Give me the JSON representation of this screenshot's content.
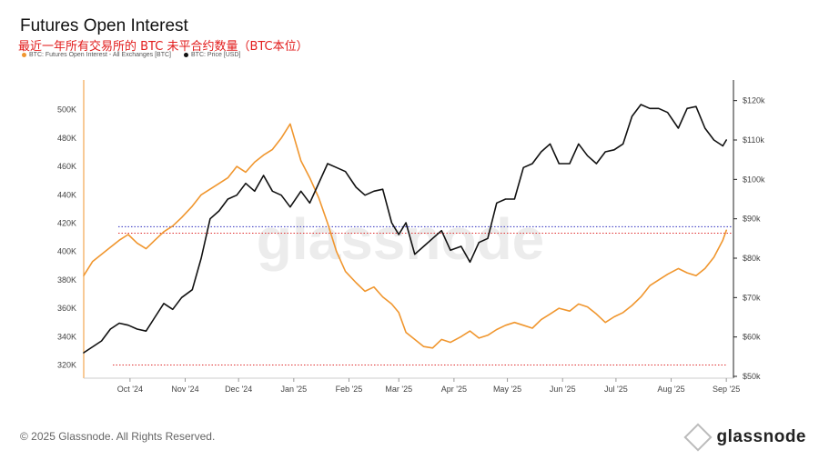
{
  "header": {
    "title": "Futures Open Interest",
    "subtitle": "最近一年所有交易所的 BTC 未平合约数量（BTC本位）"
  },
  "legend": [
    {
      "label": "BTC: Futures Open Interest - All Exchanges [BTC]",
      "color": "#f0962e"
    },
    {
      "label": "BTC: Price [USD]",
      "color": "#111111"
    }
  ],
  "footer": {
    "copyright": "© 2025 Glassnode. All Rights Reserved.",
    "brand": "glassnode",
    "watermark": "glassnode"
  },
  "chart_data": {
    "type": "line",
    "x_ticks": [
      "Oct '24",
      "Nov '24",
      "Dec '24",
      "Jan '25",
      "Feb '25",
      "Mar '25",
      "Apr '25",
      "May '25",
      "Jun '25",
      "Jul '25",
      "Aug '25",
      "Sep '25"
    ],
    "y_left": {
      "ticks": [
        "320K",
        "340K",
        "360K",
        "380K",
        "400K",
        "420K",
        "440K",
        "460K",
        "480K",
        "500K"
      ],
      "range": [
        312000,
        512000
      ]
    },
    "y_right": {
      "ticks": [
        "$50k",
        "$60k",
        "$70k",
        "$80k",
        "$90k",
        "$100k",
        "$110k",
        "$120k"
      ],
      "range": [
        50000,
        122000
      ],
      "scale": "linear"
    },
    "reference_lines": [
      {
        "value": 413000,
        "axis": "left",
        "color": "#e03030",
        "style": "dotted"
      },
      {
        "value": 320000,
        "axis": "left",
        "color": "#e03030",
        "style": "dotted"
      },
      {
        "value": 88000,
        "axis": "right",
        "color": "#3030c0",
        "style": "dotted"
      }
    ],
    "series": [
      {
        "name": "BTC: Futures Open Interest - All Exchanges [BTC]",
        "axis": "left",
        "color": "#f0962e",
        "x": [
          "2024-09-05",
          "2024-09-10",
          "2024-09-15",
          "2024-09-20",
          "2024-09-25",
          "2024-09-30",
          "2024-10-05",
          "2024-10-10",
          "2024-10-15",
          "2024-10-20",
          "2024-10-25",
          "2024-10-30",
          "2024-11-05",
          "2024-11-10",
          "2024-11-15",
          "2024-11-20",
          "2024-11-25",
          "2024-11-30",
          "2024-12-05",
          "2024-12-10",
          "2024-12-15",
          "2024-12-20",
          "2024-12-25",
          "2024-12-30",
          "2025-01-05",
          "2025-01-10",
          "2025-01-15",
          "2025-01-20",
          "2025-01-25",
          "2025-01-30",
          "2025-02-05",
          "2025-02-10",
          "2025-02-15",
          "2025-02-20",
          "2025-02-25",
          "2025-03-01",
          "2025-03-05",
          "2025-03-10",
          "2025-03-15",
          "2025-03-20",
          "2025-03-25",
          "2025-03-30",
          "2025-04-05",
          "2025-04-10",
          "2025-04-15",
          "2025-04-20",
          "2025-04-25",
          "2025-04-30",
          "2025-05-05",
          "2025-05-10",
          "2025-05-15",
          "2025-05-20",
          "2025-05-25",
          "2025-05-30",
          "2025-06-05",
          "2025-06-10",
          "2025-06-15",
          "2025-06-20",
          "2025-06-25",
          "2025-06-30",
          "2025-07-05",
          "2025-07-10",
          "2025-07-15",
          "2025-07-20",
          "2025-07-25",
          "2025-07-30",
          "2025-08-05",
          "2025-08-10",
          "2025-08-15",
          "2025-08-20",
          "2025-08-25",
          "2025-08-30",
          "2025-09-01"
        ],
        "values": [
          383000,
          393000,
          398000,
          403000,
          408000,
          412000,
          406000,
          402000,
          408000,
          414000,
          418000,
          424000,
          432000,
          440000,
          444000,
          448000,
          452000,
          460000,
          456000,
          463000,
          468000,
          472000,
          480000,
          490000,
          464000,
          452000,
          438000,
          420000,
          400000,
          386000,
          378000,
          372000,
          375000,
          368000,
          363000,
          357000,
          343000,
          338000,
          333000,
          332000,
          338000,
          336000,
          340000,
          344000,
          339000,
          341000,
          345000,
          348000,
          350000,
          348000,
          346000,
          352000,
          356000,
          360000,
          358000,
          363000,
          361000,
          356000,
          350000,
          354000,
          357000,
          362000,
          368000,
          376000,
          380000,
          384000,
          388000,
          385000,
          383000,
          388000,
          396000,
          408000,
          415000
        ]
      },
      {
        "name": "BTC: Price [USD]",
        "axis": "right",
        "color": "#111111",
        "x": [
          "2024-09-05",
          "2024-09-10",
          "2024-09-15",
          "2024-09-20",
          "2024-09-25",
          "2024-09-30",
          "2024-10-05",
          "2024-10-10",
          "2024-10-15",
          "2024-10-20",
          "2024-10-25",
          "2024-10-30",
          "2024-11-05",
          "2024-11-10",
          "2024-11-15",
          "2024-11-20",
          "2024-11-25",
          "2024-11-30",
          "2024-12-05",
          "2024-12-10",
          "2024-12-15",
          "2024-12-20",
          "2024-12-25",
          "2024-12-30",
          "2025-01-05",
          "2025-01-10",
          "2025-01-15",
          "2025-01-20",
          "2025-01-25",
          "2025-01-30",
          "2025-02-05",
          "2025-02-10",
          "2025-02-15",
          "2025-02-20",
          "2025-02-25",
          "2025-03-01",
          "2025-03-05",
          "2025-03-10",
          "2025-03-15",
          "2025-03-20",
          "2025-03-25",
          "2025-03-30",
          "2025-04-05",
          "2025-04-10",
          "2025-04-15",
          "2025-04-20",
          "2025-04-25",
          "2025-04-30",
          "2025-05-05",
          "2025-05-10",
          "2025-05-15",
          "2025-05-20",
          "2025-05-25",
          "2025-05-30",
          "2025-06-05",
          "2025-06-10",
          "2025-06-15",
          "2025-06-20",
          "2025-06-25",
          "2025-06-30",
          "2025-07-05",
          "2025-07-10",
          "2025-07-15",
          "2025-07-20",
          "2025-07-25",
          "2025-07-30",
          "2025-08-05",
          "2025-08-10",
          "2025-08-15",
          "2025-08-20",
          "2025-08-25",
          "2025-08-30",
          "2025-09-01"
        ],
        "values": [
          56000,
          57500,
          59000,
          62000,
          63500,
          63000,
          62000,
          61500,
          65000,
          68500,
          67000,
          70000,
          72000,
          80000,
          90000,
          92000,
          95000,
          96000,
          99000,
          97000,
          101000,
          97000,
          96000,
          93000,
          97000,
          94000,
          99000,
          104000,
          103000,
          102000,
          98000,
          96000,
          97000,
          97500,
          89000,
          86000,
          89000,
          81000,
          83000,
          85000,
          87000,
          82000,
          83000,
          79000,
          84000,
          85000,
          94000,
          95000,
          95000,
          103000,
          104000,
          107000,
          109000,
          104000,
          104000,
          109000,
          106000,
          104000,
          107000,
          107500,
          109000,
          116000,
          119000,
          118000,
          118000,
          117000,
          113000,
          118000,
          118500,
          113000,
          110000,
          108500,
          110000
        ]
      }
    ]
  }
}
